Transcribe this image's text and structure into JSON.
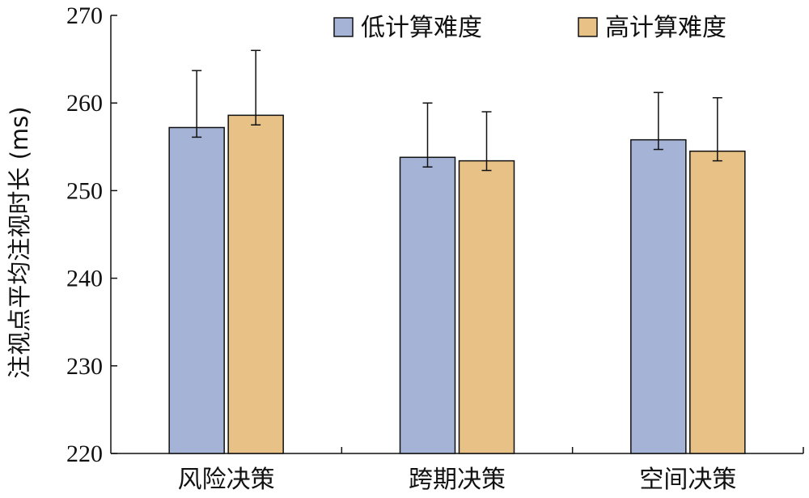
{
  "chart_data": {
    "type": "bar",
    "title": "",
    "xlabel": "",
    "ylabel": "注视点平均注视时长 (ms)",
    "ylim": [
      220,
      270
    ],
    "yticks": [
      220,
      230,
      240,
      250,
      260,
      270
    ],
    "categories": [
      "风险决策",
      "跨期决策",
      "空间决策"
    ],
    "series": [
      {
        "name": "低计算难度",
        "color": "#a4b3d6",
        "values": [
          257.2,
          253.8,
          255.8
        ],
        "error_low": [
          256.1,
          252.7,
          254.7
        ],
        "error_high": [
          263.7,
          260.0,
          261.2
        ]
      },
      {
        "name": "高计算难度",
        "color": "#e8c187",
        "values": [
          258.6,
          253.4,
          254.5
        ],
        "error_low": [
          257.5,
          252.3,
          253.4
        ],
        "error_high": [
          266.0,
          259.0,
          260.6
        ]
      }
    ],
    "legend_position": "top-right",
    "grid": false
  }
}
